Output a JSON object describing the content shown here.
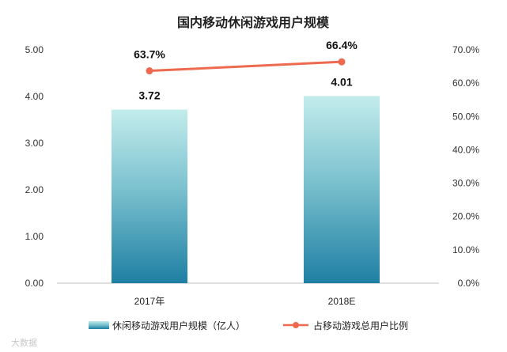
{
  "chart_data": {
    "type": "bar+line",
    "title": "国内移动休闲游戏用户规模",
    "categories": [
      "2017年",
      "2018E"
    ],
    "bar_series": {
      "name": "休闲移动游戏用户规模（亿人）",
      "values": [
        3.72,
        4.01
      ],
      "labels": [
        "3.72",
        "4.01"
      ],
      "axis": "left",
      "color_top": "#c3ecec",
      "color_bottom": "#1e7fa3"
    },
    "line_series": {
      "name": "占移动游戏总用户比例",
      "values": [
        63.7,
        66.4
      ],
      "labels": [
        "63.7%",
        "66.4%"
      ],
      "axis": "right",
      "color": "#ed6a4f"
    },
    "y_left": {
      "ylim": [
        0,
        5
      ],
      "ticks": [
        "0.00",
        "1.00",
        "2.00",
        "3.00",
        "4.00",
        "5.00"
      ]
    },
    "y_right": {
      "ylim": [
        0,
        70
      ],
      "ticks": [
        "0.0%",
        "10.0%",
        "20.0%",
        "30.0%",
        "40.0%",
        "50.0%",
        "60.0%",
        "70.0%"
      ]
    },
    "grid": false,
    "legend_position": "bottom"
  },
  "watermark": "大数据"
}
